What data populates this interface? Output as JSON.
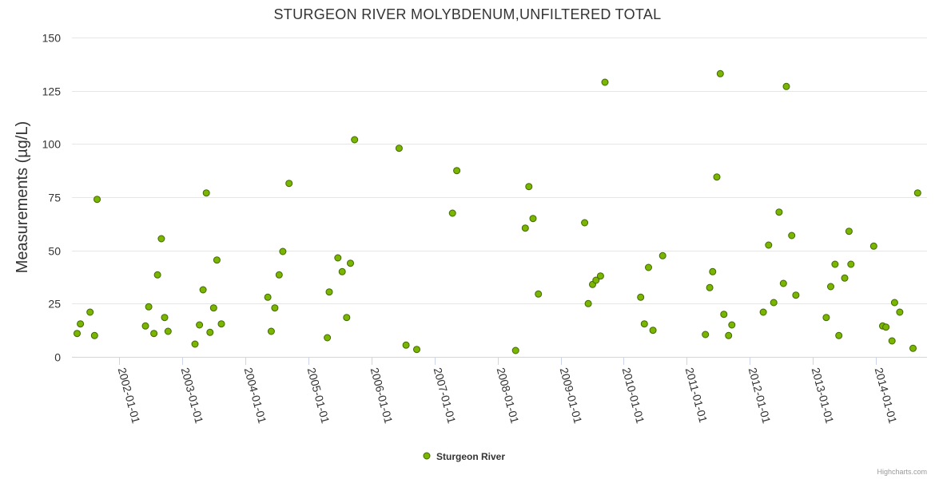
{
  "chart_data": {
    "type": "scatter",
    "title": "STURGEON RIVER MOLYBDENUM,UNFILTERED TOTAL",
    "xlabel": "",
    "ylabel": "Measurements (µg/L)",
    "ylim": [
      0,
      150
    ],
    "yticks": [
      0,
      25,
      50,
      75,
      100,
      125,
      150
    ],
    "xlim": [
      "2001-04-01",
      "2014-10-25"
    ],
    "xticks": [
      "2002-01-01",
      "2003-01-01",
      "2004-01-01",
      "2005-01-01",
      "2006-01-01",
      "2007-01-01",
      "2008-01-01",
      "2009-01-01",
      "2010-01-01",
      "2011-01-01",
      "2012-01-01",
      "2013-01-01",
      "2014-01-01"
    ],
    "legend_position": "bottom-center",
    "grid": true,
    "series": [
      {
        "name": "Sturgeon River",
        "color": "#7cb500",
        "points": [
          [
            "2001-05-01",
            11
          ],
          [
            "2001-05-20",
            15.5
          ],
          [
            "2001-07-15",
            21
          ],
          [
            "2001-08-10",
            10
          ],
          [
            "2001-08-25",
            74
          ],
          [
            "2002-06-01",
            14.5
          ],
          [
            "2002-06-20",
            23.5
          ],
          [
            "2002-07-20",
            11
          ],
          [
            "2002-08-10",
            38.5
          ],
          [
            "2002-09-01",
            55.5
          ],
          [
            "2002-09-20",
            18.5
          ],
          [
            "2002-10-10",
            12
          ],
          [
            "2003-03-15",
            6
          ],
          [
            "2003-04-10",
            15
          ],
          [
            "2003-05-01",
            31.5
          ],
          [
            "2003-05-20",
            77
          ],
          [
            "2003-06-10",
            11.5
          ],
          [
            "2003-07-01",
            23
          ],
          [
            "2003-07-20",
            45.5
          ],
          [
            "2003-08-15",
            15.5
          ],
          [
            "2004-05-10",
            28
          ],
          [
            "2004-05-30",
            12
          ],
          [
            "2004-06-20",
            23
          ],
          [
            "2004-07-15",
            38.5
          ],
          [
            "2004-08-05",
            49.5
          ],
          [
            "2004-09-10",
            81.5
          ],
          [
            "2005-04-20",
            9
          ],
          [
            "2005-05-01",
            30.5
          ],
          [
            "2005-06-20",
            46.5
          ],
          [
            "2005-07-15",
            40
          ],
          [
            "2005-08-10",
            18.5
          ],
          [
            "2005-09-01",
            44
          ],
          [
            "2005-09-25",
            102
          ],
          [
            "2006-06-10",
            98
          ],
          [
            "2006-07-20",
            5.5
          ],
          [
            "2006-09-20",
            3.5
          ],
          [
            "2007-04-15",
            67.5
          ],
          [
            "2007-05-10",
            87.5
          ],
          [
            "2008-04-15",
            3
          ],
          [
            "2008-06-10",
            60.5
          ],
          [
            "2008-07-01",
            80
          ],
          [
            "2008-07-25",
            65
          ],
          [
            "2008-08-25",
            29.5
          ],
          [
            "2009-05-20",
            63
          ],
          [
            "2009-06-10",
            25
          ],
          [
            "2009-07-05",
            34
          ],
          [
            "2009-07-25",
            36
          ],
          [
            "2009-08-20",
            38
          ],
          [
            "2009-09-15",
            129
          ],
          [
            "2010-04-10",
            28
          ],
          [
            "2010-05-01",
            15.5
          ],
          [
            "2010-05-25",
            42
          ],
          [
            "2010-06-20",
            12.5
          ],
          [
            "2010-08-15",
            47.5
          ],
          [
            "2011-04-20",
            10.5
          ],
          [
            "2011-05-15",
            32.5
          ],
          [
            "2011-06-01",
            40
          ],
          [
            "2011-06-25",
            84.5
          ],
          [
            "2011-07-15",
            133
          ],
          [
            "2011-08-05",
            20
          ],
          [
            "2011-09-01",
            10
          ],
          [
            "2011-09-20",
            15
          ],
          [
            "2012-03-20",
            21
          ],
          [
            "2012-04-20",
            52.5
          ],
          [
            "2012-05-20",
            25.5
          ],
          [
            "2012-06-20",
            68
          ],
          [
            "2012-07-15",
            34.5
          ],
          [
            "2012-08-01",
            127
          ],
          [
            "2012-09-01",
            57
          ],
          [
            "2012-09-25",
            29
          ],
          [
            "2013-03-20",
            18.5
          ],
          [
            "2013-04-15",
            33
          ],
          [
            "2013-05-10",
            43.5
          ],
          [
            "2013-06-01",
            10
          ],
          [
            "2013-07-05",
            37
          ],
          [
            "2013-07-30",
            59
          ],
          [
            "2013-08-10",
            43.5
          ],
          [
            "2013-12-20",
            52
          ],
          [
            "2014-02-10",
            14.5
          ],
          [
            "2014-03-01",
            14
          ],
          [
            "2014-04-05",
            7.5
          ],
          [
            "2014-04-20",
            25.5
          ],
          [
            "2014-05-20",
            21
          ],
          [
            "2014-08-05",
            4
          ],
          [
            "2014-09-01",
            77
          ]
        ]
      }
    ]
  },
  "credits": "Highcharts.com"
}
